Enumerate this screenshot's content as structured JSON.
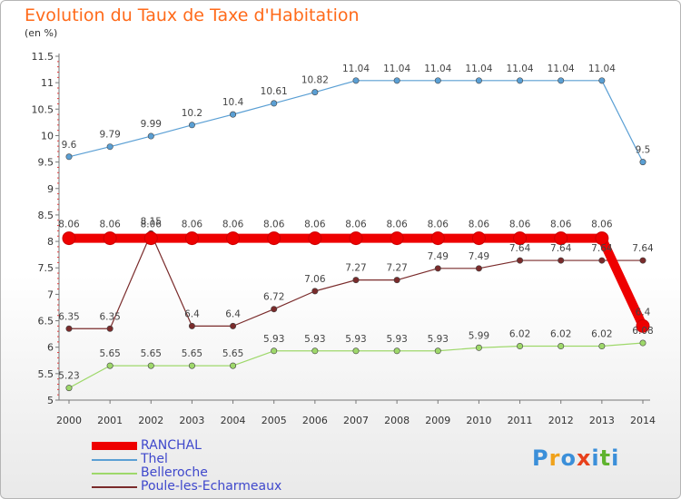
{
  "header": {
    "title": "Evolution du Taux de Taxe d'Habitation",
    "subtitle": "(en %)"
  },
  "logo": {
    "text": "Proxiti",
    "colors": [
      "#3b8fd9",
      "#f0a21b",
      "#3b8fd9",
      "#e8411c",
      "#3b8fd9",
      "#5fb32e",
      "#3b8fd9"
    ]
  },
  "chart_data": {
    "type": "line",
    "title": "Evolution du Taux de Taxe d'Habitation",
    "subtitle": "(en %)",
    "categories": [
      "2000",
      "2001",
      "2002",
      "2003",
      "2004",
      "2005",
      "2006",
      "2007",
      "2008",
      "2009",
      "2010",
      "2011",
      "2012",
      "2013",
      "2014"
    ],
    "ylim": [
      5,
      11.5
    ],
    "yticks": [
      "5",
      "5.5",
      "6",
      "6.5",
      "7",
      "7.5",
      "8",
      "8.5",
      "9",
      "9.5",
      "10",
      "10.5",
      "11",
      "11.5"
    ],
    "grid": false,
    "legend_position": "bottom-left",
    "series": [
      {
        "name": "RANCHAL",
        "color": "#ee0000",
        "values": [
          8.06,
          8.06,
          8.06,
          8.06,
          8.06,
          8.06,
          8.06,
          8.06,
          8.06,
          8.06,
          8.06,
          8.06,
          8.06,
          8.06,
          6.4
        ],
        "labels": [
          "8.06",
          "8.06",
          "8.06",
          "8.06",
          "8.06",
          "8.06",
          "8.06",
          "8.06",
          "8.06",
          "8.06",
          "8.06",
          "8.06",
          "8.06",
          "8.06",
          "6.4"
        ]
      },
      {
        "name": "Thel",
        "color": "#5a9fd4",
        "values": [
          9.6,
          9.79,
          9.99,
          10.2,
          10.4,
          10.61,
          10.82,
          11.04,
          11.04,
          11.04,
          11.04,
          11.04,
          11.04,
          11.04,
          9.5
        ],
        "labels": [
          "9.6",
          "9.79",
          "9.99",
          "10.2",
          "10.4",
          "10.61",
          "10.82",
          "11.04",
          "11.04",
          "11.04",
          "11.04",
          "11.04",
          "11.04",
          "11.04",
          "9.5"
        ]
      },
      {
        "name": "Belleroche",
        "color": "#9ed86a",
        "values": [
          5.23,
          5.65,
          5.65,
          5.65,
          5.65,
          5.93,
          5.93,
          5.93,
          5.93,
          5.93,
          5.99,
          6.02,
          6.02,
          6.02,
          6.08
        ],
        "labels": [
          "5.23",
          "5.65",
          "5.65",
          "5.65",
          "5.65",
          "5.93",
          "5.93",
          "5.93",
          "5.93",
          "5.93",
          "5.99",
          "6.02",
          "6.02",
          "6.02",
          "6.08"
        ]
      },
      {
        "name": "Poule-les-Echarmeaux",
        "color": "#7a2b2b",
        "values": [
          6.35,
          6.35,
          8.15,
          6.4,
          6.4,
          6.72,
          7.06,
          7.27,
          7.27,
          7.49,
          7.49,
          7.64,
          7.64,
          7.64,
          7.64
        ],
        "labels": [
          "6.35",
          "6.35",
          "8.15",
          "6.4",
          "6.4",
          "6.72",
          "7.06",
          "7.27",
          "7.27",
          "7.49",
          "7.49",
          "7.64",
          "7.64",
          "7.64",
          "7.64"
        ]
      }
    ]
  }
}
